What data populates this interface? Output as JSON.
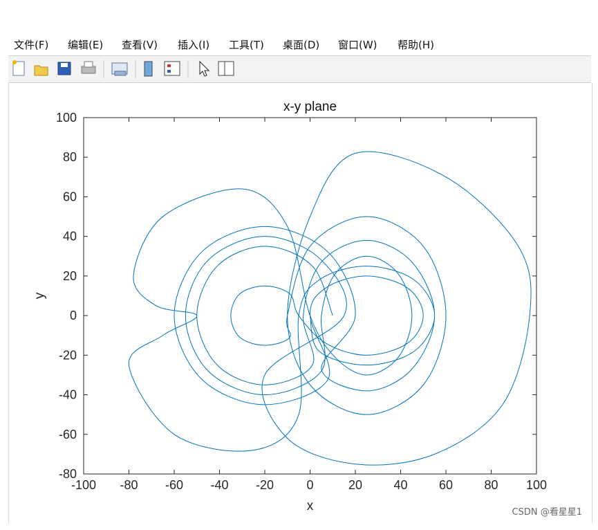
{
  "menu": [
    "文件(F)",
    "编辑(E)",
    "查看(V)",
    "插入(I)",
    "工具(T)",
    "桌面(D)",
    "窗口(W)",
    "帮助(H)"
  ],
  "watermark": "CSDN @看星星1",
  "chart_data": {
    "type": "line",
    "title": "x-y plane",
    "x_label": "x",
    "y_label": "y",
    "xlim": [
      -100,
      100
    ],
    "ylim": [
      -80,
      100
    ],
    "xticks": [
      -100,
      -80,
      -60,
      -40,
      -20,
      0,
      20,
      40,
      60,
      80,
      100
    ],
    "yticks": [
      -80,
      -60,
      -40,
      -20,
      0,
      20,
      40,
      60,
      80,
      100
    ],
    "grid": false,
    "series": [
      {
        "color": "#0072bd",
        "x": [
          10,
          1,
          -20,
          -41,
          -50,
          -41,
          -20,
          1,
          -3,
          5,
          25,
          45,
          55,
          45,
          25,
          5,
          20,
          8,
          -20,
          -48,
          -60,
          -48,
          -20,
          8,
          0,
          7,
          25,
          43,
          50,
          43,
          25,
          7,
          -5,
          -9,
          -20,
          -31,
          -35,
          -31,
          -20,
          -9,
          -10,
          0,
          25,
          50,
          60,
          50,
          25,
          0,
          -10,
          0,
          20,
          60,
          92,
          97,
          85,
          55,
          20,
          -10,
          -20,
          15,
          5,
          -20,
          -45,
          -55,
          -45,
          -20,
          5,
          5,
          11,
          25,
          39,
          45,
          39,
          25,
          11,
          0,
          -10,
          -30,
          -65,
          -78,
          -68,
          -50,
          -65,
          -80,
          -60,
          -25,
          -5,
          -5,
          4,
          25,
          46,
          55,
          46,
          25,
          4,
          0
        ],
        "y": [
          0,
          25,
          35,
          25,
          0,
          -25,
          -35,
          -25,
          0,
          27,
          38,
          27,
          0,
          -27,
          -38,
          -27,
          0,
          32,
          45,
          32,
          0,
          -32,
          -45,
          -32,
          0,
          14,
          20,
          14,
          0,
          -14,
          -20,
          -14,
          0,
          11,
          15,
          11,
          0,
          -11,
          -15,
          -11,
          0,
          35,
          50,
          35,
          0,
          -35,
          -50,
          -35,
          0,
          50,
          82,
          70,
          35,
          0,
          -45,
          -70,
          -75,
          -62,
          -30,
          0,
          28,
          40,
          28,
          0,
          -28,
          -40,
          -28,
          0,
          21,
          30,
          21,
          0,
          -21,
          -30,
          -21,
          0,
          45,
          64,
          50,
          20,
          5,
          0,
          -10,
          -25,
          -60,
          -68,
          -50,
          0,
          18,
          25,
          18,
          0,
          -18,
          -25,
          -18,
          0
        ]
      }
    ]
  }
}
